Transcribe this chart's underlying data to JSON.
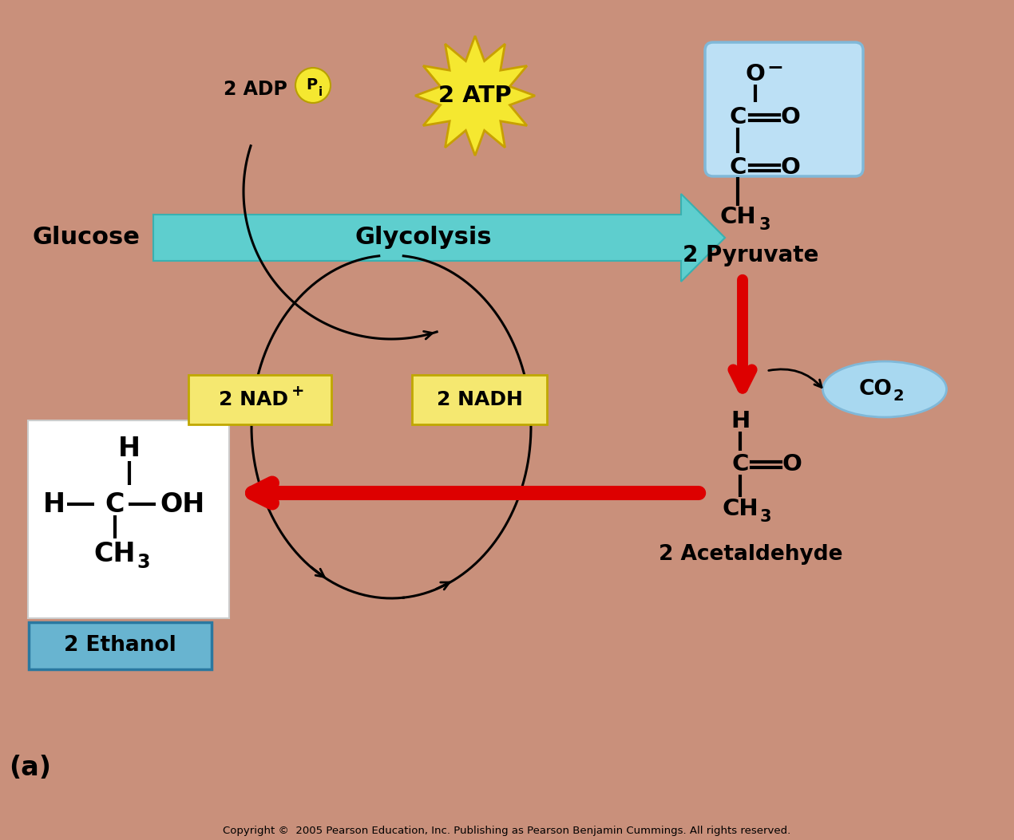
{
  "bg_color": "#c9907b",
  "glycolysis_arrow_color": "#5ecece",
  "glycolysis_text": "Glycolysis",
  "glucose_text": "Glucose",
  "atp_star_color": "#f5e830",
  "atp_text": "2 ATP",
  "adp_text": "2 ADP + 2",
  "pi_circle_color": "#f5e830",
  "nad_box_color": "#f5e870",
  "nadh_box_color": "#f5e870",
  "pyruvate_text": "2 Pyruvate",
  "co2_box_color": "#a8d8f0",
  "acetaldehyde_text": "2 Acetaldehyde",
  "ethanol_text": "2 Ethanol",
  "ethanol_box_color": "#68b4d0",
  "red_arrow_color": "#dd0000",
  "pyruvate_box_color": "#bce0f5",
  "pyruvate_box_edge": "#80b8d8",
  "label_a": "(a)",
  "copyright": "Copyright ©  2005 Pearson Education, Inc. Publishing as Pearson Benjamin Cummings. All rights reserved.",
  "white": "#ffffff",
  "black": "#000000"
}
